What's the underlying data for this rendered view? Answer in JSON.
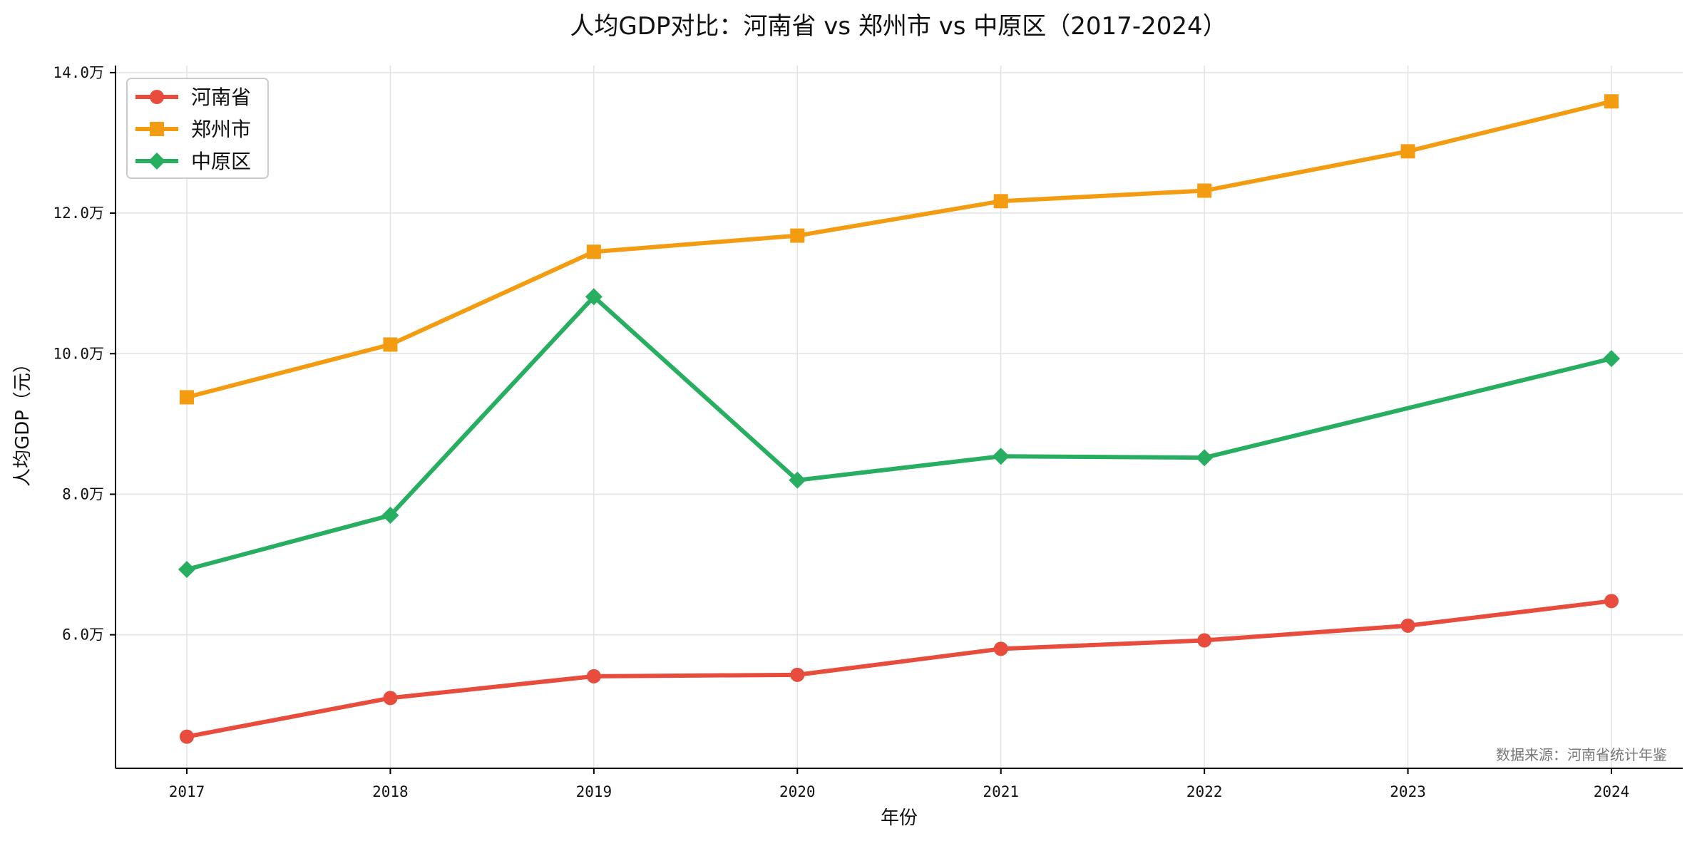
{
  "chart_data": {
    "type": "line",
    "title": "人均GDP对比：河南省 vs 郑州市 vs 中原区（2017-2024）",
    "xlabel": "年份",
    "ylabel": "人均GDP（元）",
    "categories": [
      "2017",
      "2018",
      "2019",
      "2020",
      "2021",
      "2022",
      "2023",
      "2024"
    ],
    "ylim": [
      41000,
      141000
    ],
    "yticks": [
      60000,
      80000,
      100000,
      120000,
      140000
    ],
    "ytick_labels": [
      "6.0万",
      "8.0万",
      "10.0万",
      "12.0万",
      "14.0万"
    ],
    "grid": true,
    "legend_position": "top-left",
    "source_note": "数据来源：河南省统计年鉴",
    "series": [
      {
        "name": "河南省",
        "color": "#e74c3c",
        "marker": "circle",
        "values": [
          45500,
          51000,
          54100,
          54300,
          58000,
          59200,
          61300,
          64800
        ]
      },
      {
        "name": "郑州市",
        "color": "#f39c12",
        "marker": "square",
        "values": [
          93800,
          101300,
          114500,
          116800,
          121700,
          123200,
          128800,
          135900
        ]
      },
      {
        "name": "中原区",
        "color": "#27ae60",
        "marker": "diamond",
        "values": [
          69300,
          77000,
          108100,
          82000,
          85400,
          85200,
          null,
          99300
        ]
      }
    ]
  }
}
